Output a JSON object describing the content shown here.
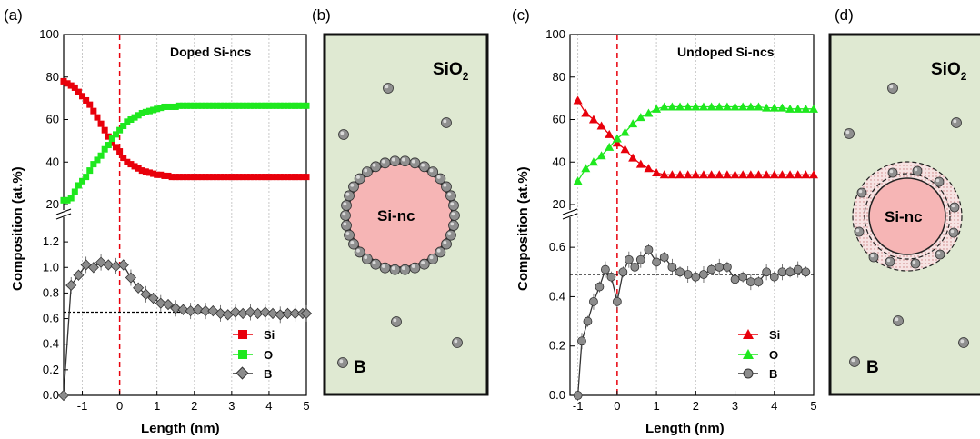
{
  "chart_data": [
    {
      "panel_label": "(a)",
      "type": "line",
      "title": "Doped Si-ncs",
      "xlabel": "Length (nm)",
      "ylabel": "Composition (at.%)",
      "xlim": [
        -1.5,
        5
      ],
      "xticks": [
        "-1",
        "0",
        "1",
        "2",
        "3",
        "4",
        "5"
      ],
      "ylim_upper": [
        20,
        100
      ],
      "yticks_upper": [
        "20",
        "40",
        "60",
        "80",
        "100"
      ],
      "ylim_lower": [
        0,
        1.35
      ],
      "yticks_lower": [
        "0.0",
        "0.2",
        "0.4",
        "0.6",
        "0.8",
        "1.0",
        "1.2"
      ],
      "interface_x": 0,
      "b_reference_level": 0.65,
      "series": [
        {
          "name": "Si",
          "color": "#e8000b",
          "marker": "square",
          "x": [
            -1.5,
            -1.4,
            -1.3,
            -1.2,
            -1.1,
            -1.0,
            -0.9,
            -0.8,
            -0.7,
            -0.6,
            -0.5,
            -0.4,
            -0.3,
            -0.2,
            -0.1,
            0.0,
            0.1,
            0.2,
            0.3,
            0.4,
            0.5,
            0.6,
            0.7,
            0.8,
            0.9,
            1.0,
            1.1,
            1.2,
            1.3,
            1.4,
            1.5,
            1.6,
            1.7,
            1.8,
            1.9,
            2.0,
            2.1,
            2.2,
            2.3,
            2.4,
            2.5,
            2.6,
            2.7,
            2.8,
            2.9,
            3.0,
            3.1,
            3.2,
            3.3,
            3.4,
            3.5,
            3.6,
            3.7,
            3.8,
            3.9,
            4.0,
            4.1,
            4.2,
            4.3,
            4.4,
            4.5,
            4.6,
            4.7,
            4.8,
            4.9,
            5.0
          ],
          "y": [
            78,
            77,
            76,
            75,
            73,
            71,
            69,
            67,
            64,
            61,
            58,
            55,
            52,
            49,
            47,
            45,
            42,
            40,
            39,
            38,
            37,
            36,
            35.5,
            35,
            34.5,
            34,
            34,
            33.5,
            33.5,
            33,
            33,
            33,
            33,
            33,
            33,
            33,
            33,
            33,
            33,
            33,
            33,
            33,
            33,
            33,
            33,
            33,
            33,
            33,
            33,
            33,
            33,
            33,
            33,
            33,
            33,
            33,
            33,
            33,
            33,
            33,
            33,
            33,
            33,
            33,
            33,
            33
          ]
        },
        {
          "name": "O",
          "color": "#1ee81e",
          "marker": "square",
          "x": [
            -1.5,
            -1.4,
            -1.3,
            -1.2,
            -1.1,
            -1.0,
            -0.9,
            -0.8,
            -0.7,
            -0.6,
            -0.5,
            -0.4,
            -0.3,
            -0.2,
            -0.1,
            0.0,
            0.1,
            0.2,
            0.3,
            0.4,
            0.5,
            0.6,
            0.7,
            0.8,
            0.9,
            1.0,
            1.1,
            1.2,
            1.3,
            1.4,
            1.5,
            1.6,
            1.7,
            1.8,
            1.9,
            2.0,
            2.1,
            2.2,
            2.3,
            2.4,
            2.5,
            2.6,
            2.7,
            2.8,
            2.9,
            3.0,
            3.1,
            3.2,
            3.3,
            3.4,
            3.5,
            3.6,
            3.7,
            3.8,
            3.9,
            4.0,
            4.1,
            4.2,
            4.3,
            4.4,
            4.5,
            4.6,
            4.7,
            4.8,
            4.9,
            5.0
          ],
          "y": [
            22,
            22,
            23,
            26,
            29,
            31,
            33,
            36,
            39,
            41,
            43,
            46,
            48,
            51,
            53,
            55,
            57,
            59,
            60,
            61,
            62,
            63,
            63.5,
            64,
            64.5,
            65,
            65.5,
            66,
            66,
            66,
            66,
            66.5,
            66.5,
            66.5,
            66.5,
            66.5,
            66.5,
            66.5,
            66.5,
            66.5,
            66.5,
            66.5,
            66.5,
            66.5,
            66.5,
            66.5,
            66.5,
            66.5,
            66.5,
            66.5,
            66.5,
            66.5,
            66.5,
            66.5,
            66.5,
            66.5,
            66.5,
            66.5,
            66.5,
            66.5,
            66.5,
            66.5,
            66.5,
            66.5,
            66.5,
            66.5
          ]
        },
        {
          "name": "B",
          "color": "#8c8c8c",
          "marker": "diamond",
          "x": [
            -1.5,
            -1.3,
            -1.1,
            -0.9,
            -0.7,
            -0.5,
            -0.3,
            -0.1,
            0.1,
            0.3,
            0.5,
            0.7,
            0.9,
            1.1,
            1.3,
            1.5,
            1.7,
            1.9,
            2.1,
            2.3,
            2.5,
            2.7,
            2.9,
            3.1,
            3.3,
            3.5,
            3.7,
            3.9,
            4.1,
            4.3,
            4.5,
            4.7,
            4.9,
            5.0
          ],
          "y": [
            0.0,
            0.86,
            0.94,
            1.02,
            1.0,
            1.04,
            1.02,
            1.01,
            1.02,
            0.92,
            0.84,
            0.79,
            0.76,
            0.72,
            0.71,
            0.68,
            0.67,
            0.66,
            0.67,
            0.66,
            0.66,
            0.64,
            0.63,
            0.65,
            0.64,
            0.65,
            0.64,
            0.65,
            0.64,
            0.63,
            0.64,
            0.64,
            0.64,
            0.64
          ]
        }
      ]
    },
    {
      "panel_label": "(c)",
      "type": "line",
      "title": "Undoped Si-ncs",
      "xlabel": "Length (nm)",
      "ylabel": "Composition (at.%)",
      "xlim": [
        -1.2,
        5
      ],
      "xticks": [
        "-1",
        "0",
        "1",
        "2",
        "3",
        "4",
        "5"
      ],
      "ylim_upper": [
        20,
        100
      ],
      "yticks_upper": [
        "20",
        "40",
        "60",
        "80",
        "100"
      ],
      "ylim_lower": [
        0,
        0.7
      ],
      "yticks_lower": [
        "0.0",
        "0.2",
        "0.4",
        "0.6"
      ],
      "interface_x": 0,
      "b_reference_level": 0.49,
      "series": [
        {
          "name": "Si",
          "color": "#e8000b",
          "marker": "triangle",
          "x": [
            -1.0,
            -0.8,
            -0.6,
            -0.4,
            -0.2,
            0.0,
            0.2,
            0.4,
            0.6,
            0.8,
            1.0,
            1.2,
            1.4,
            1.6,
            1.8,
            2.0,
            2.2,
            2.4,
            2.6,
            2.8,
            3.0,
            3.2,
            3.4,
            3.6,
            3.8,
            4.0,
            4.2,
            4.4,
            4.6,
            4.8,
            5.0
          ],
          "y": [
            69,
            63,
            60,
            57,
            53,
            49,
            46,
            42,
            39,
            37,
            35,
            34,
            34,
            34,
            34,
            34,
            34,
            34,
            34,
            34,
            34,
            34,
            34,
            34,
            34,
            34,
            34,
            34,
            34,
            34,
            34
          ]
        },
        {
          "name": "O",
          "color": "#1ee81e",
          "marker": "triangle",
          "x": [
            -1.0,
            -0.8,
            -0.6,
            -0.4,
            -0.2,
            0.0,
            0.2,
            0.4,
            0.6,
            0.8,
            1.0,
            1.2,
            1.4,
            1.6,
            1.8,
            2.0,
            2.2,
            2.4,
            2.6,
            2.8,
            3.0,
            3.2,
            3.4,
            3.6,
            3.8,
            4.0,
            4.2,
            4.4,
            4.6,
            4.8,
            5.0
          ],
          "y": [
            31,
            37,
            40,
            43,
            47,
            51,
            54,
            58,
            61,
            63,
            65,
            66,
            66,
            66,
            66,
            66,
            66,
            66,
            66,
            66,
            66,
            66,
            66,
            66,
            65.5,
            65.5,
            65.5,
            65,
            65,
            65,
            65
          ]
        },
        {
          "name": "B",
          "color": "#8c8c8c",
          "marker": "circle",
          "x": [
            -1.0,
            -0.9,
            -0.75,
            -0.6,
            -0.45,
            -0.3,
            -0.15,
            0.0,
            0.15,
            0.3,
            0.45,
            0.6,
            0.8,
            1.0,
            1.2,
            1.4,
            1.6,
            1.8,
            2.0,
            2.2,
            2.4,
            2.6,
            2.8,
            3.0,
            3.2,
            3.4,
            3.6,
            3.8,
            4.0,
            4.2,
            4.4,
            4.6,
            4.8
          ],
          "y": [
            0.0,
            0.22,
            0.3,
            0.38,
            0.44,
            0.51,
            0.48,
            0.38,
            0.5,
            0.55,
            0.52,
            0.55,
            0.59,
            0.54,
            0.56,
            0.52,
            0.5,
            0.49,
            0.48,
            0.49,
            0.51,
            0.52,
            0.52,
            0.47,
            0.48,
            0.46,
            0.46,
            0.5,
            0.48,
            0.5,
            0.5,
            0.51,
            0.5
          ]
        }
      ]
    }
  ],
  "schematics": [
    {
      "panel_label": "(b)",
      "matrix_label": "SiO",
      "matrix_sub": "2",
      "core_label": "Si-nc",
      "dopant_label": "B"
    },
    {
      "panel_label": "(d)",
      "matrix_label": "SiO",
      "matrix_sub": "2",
      "core_label": "Si-nc",
      "dopant_label": "B"
    }
  ]
}
